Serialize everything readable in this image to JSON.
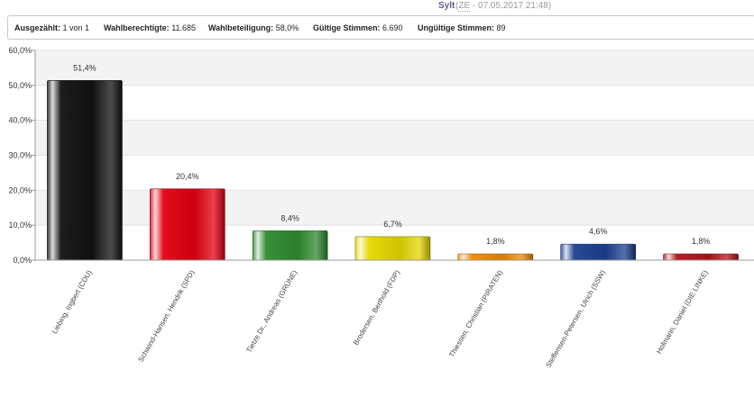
{
  "header": {
    "region": "Sylt",
    "meta_open": "(",
    "meta_abbr": "ZE",
    "meta_close": " - 07.05.2017 21:48)"
  },
  "stats": [
    {
      "label": "Ausgezählt:",
      "value": "1 von 1"
    },
    {
      "label": "Wahlberechtigte:",
      "value": "11.685"
    },
    {
      "label": "Wahlbeteiligung:",
      "value": "58,0%"
    },
    {
      "label": "Gültige Stimmen:",
      "value": "6.690"
    },
    {
      "label": "Ungültige Stimmen:",
      "value": "89"
    }
  ],
  "chart_data": {
    "type": "bar",
    "title": "",
    "xlabel": "",
    "ylabel": "",
    "ylim": [
      0,
      60
    ],
    "yticks": [
      0,
      10,
      20,
      30,
      40,
      50,
      60
    ],
    "ytick_labels": [
      "0,0%",
      "10,0%",
      "20,0%",
      "30,0%",
      "40,0%",
      "50,0%",
      "60,0%"
    ],
    "grid": true,
    "alternating_bands": true,
    "categories": [
      "Liebing, Ingbert (CDU)",
      "Schwind-Hansen, Hendrik (SPD)",
      "Tietze Dr., Andreas (GRÜNE)",
      "Brodersen, Berthold (FDP)",
      "Thiessen, Christian (PIRATEN)",
      "Steffensen-Petersen, Ulrich (SSW)",
      "Hofmann, Daniel (DIE LINKE)"
    ],
    "values": [
      51.4,
      20.4,
      8.4,
      6.7,
      1.8,
      4.6,
      1.8
    ],
    "value_labels": [
      "51,4%",
      "20,4%",
      "8,4%",
      "6,7%",
      "1,8%",
      "4,6%",
      "1,8%"
    ],
    "colors": [
      "#111111",
      "#e3000f",
      "#2e8b2e",
      "#e6d800",
      "#f08a00",
      "#1d3f8f",
      "#b5121b"
    ]
  }
}
